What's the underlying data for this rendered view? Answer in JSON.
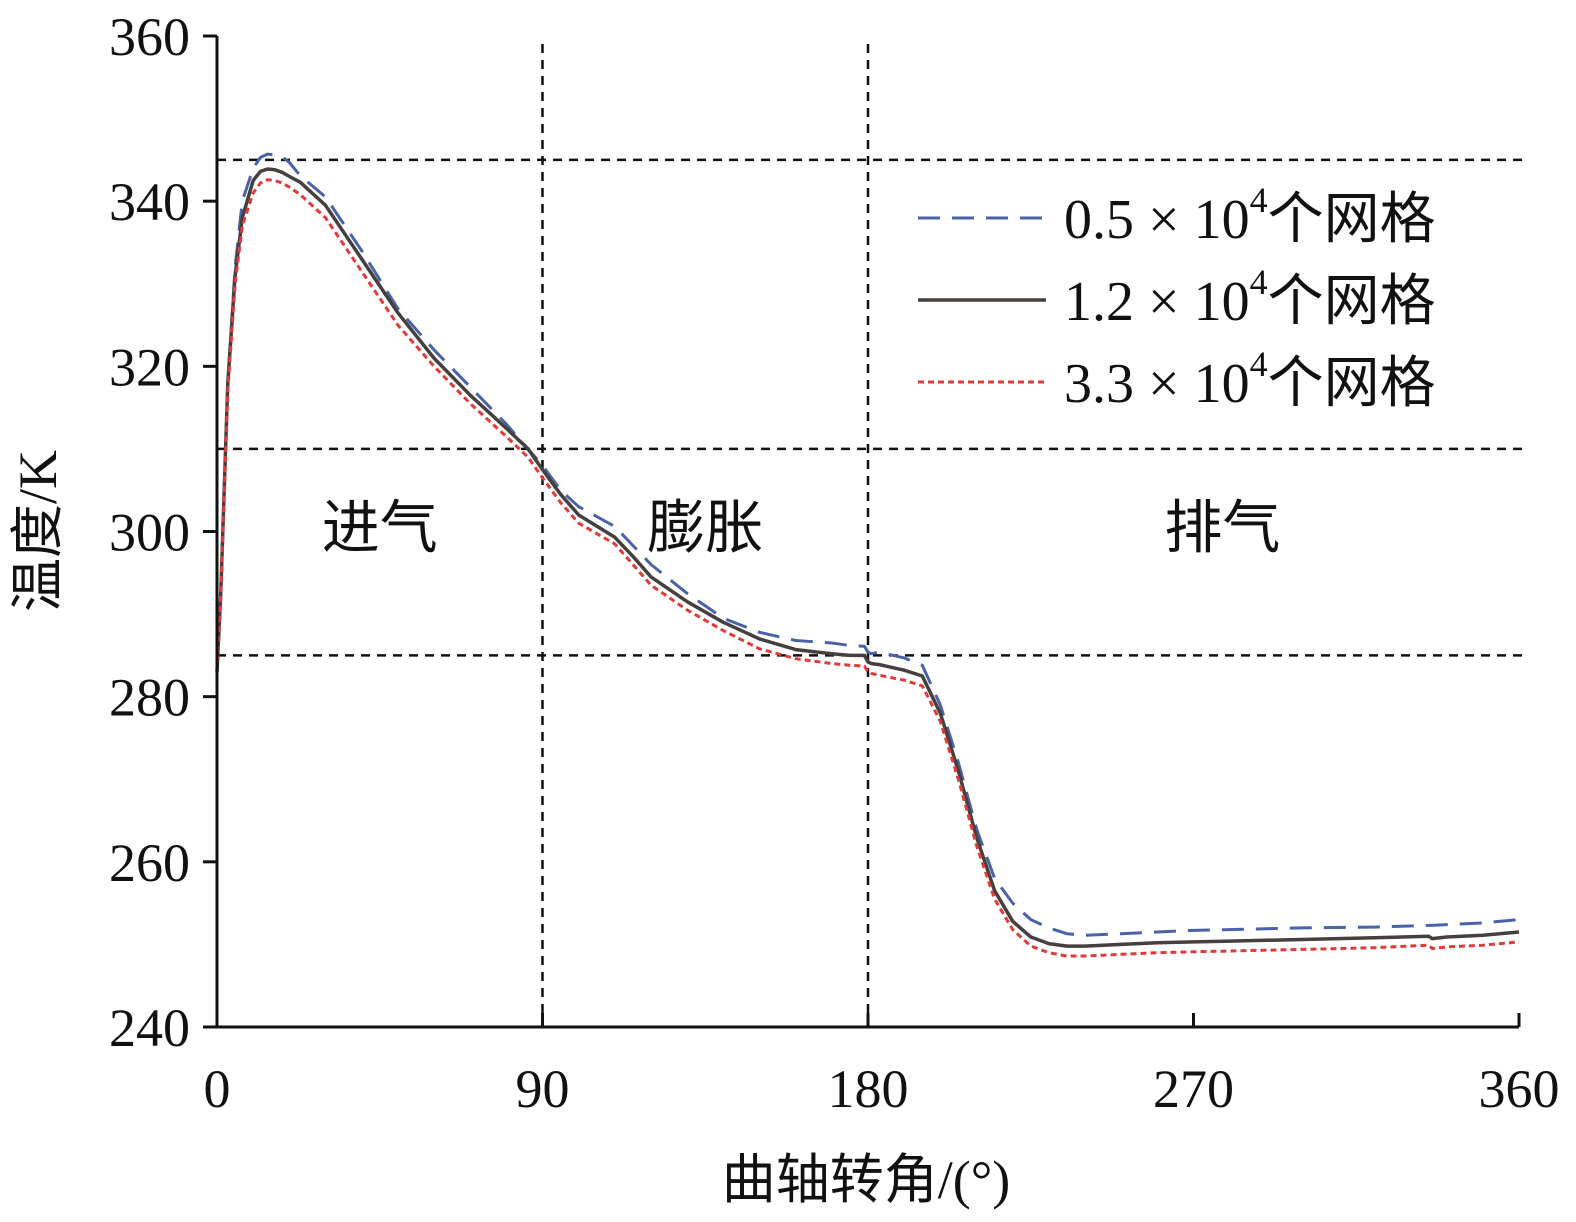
{
  "chart_data": {
    "type": "line",
    "title": "",
    "xlabel": "曲轴转角/(°)",
    "ylabel": "温度/K",
    "xlim": [
      0,
      360
    ],
    "ylim": [
      240,
      360
    ],
    "xticks": [
      "0",
      "90",
      "180",
      "270",
      "360"
    ],
    "yticks": [
      "240",
      "260",
      "280",
      "300",
      "320",
      "340",
      "360"
    ],
    "grid": false,
    "legend_position": "top-right",
    "reference_lines": {
      "vertical_x": [
        90,
        180
      ],
      "horizontal_y": [
        345,
        310,
        285
      ]
    },
    "regions": [
      {
        "label": "进气",
        "x": 45,
        "y": 300
      },
      {
        "label": "膨胀",
        "x": 135,
        "y": 300
      },
      {
        "label": "排气",
        "x": 278,
        "y": 300
      }
    ],
    "series": [
      {
        "name": "0.5×10⁴个网格",
        "legend_text": "0.5 × 10",
        "legend_sup": "4",
        "legend_suffix": "个网格",
        "color": "#4a63a8",
        "style": "dashed",
        "x": [
          0,
          1,
          3,
          5,
          7,
          10,
          12,
          14,
          16,
          18,
          20,
          23,
          30,
          40,
          50,
          60,
          70,
          80,
          86,
          90,
          95,
          100,
          110,
          115,
          120,
          130,
          140,
          150,
          160,
          170,
          175,
          179,
          180,
          181,
          183,
          190,
          195,
          200,
          205,
          210,
          215,
          220,
          225,
          230,
          235,
          240,
          245,
          250,
          260,
          270,
          280,
          300,
          320,
          335,
          336,
          340,
          350,
          360
        ],
        "y": [
          283,
          292,
          318,
          332,
          340,
          344,
          345.3,
          345.7,
          345.6,
          345.4,
          344.7,
          343.1,
          340.5,
          334,
          327,
          322,
          317.5,
          313,
          310,
          308,
          305,
          303,
          300.6,
          298.3,
          296,
          292.5,
          289.5,
          287.8,
          286.8,
          286.5,
          286.2,
          286.1,
          285.4,
          285.2,
          285.4,
          284.7,
          283.8,
          279,
          272,
          264,
          258,
          255,
          253,
          252,
          251.3,
          251.1,
          251.2,
          251.3,
          251.5,
          251.7,
          251.8,
          252,
          252.1,
          252.3,
          252.3,
          252.4,
          252.6,
          253
        ]
      },
      {
        "name": "1.2×10⁴个网格",
        "legend_text": "1.2 × 10",
        "legend_sup": "4",
        "legend_suffix": "个网格",
        "color": "#45403d",
        "style": "solid",
        "x": [
          0,
          1,
          3,
          5,
          7,
          10,
          12,
          14,
          16,
          18,
          20,
          23,
          30,
          40,
          50,
          60,
          70,
          80,
          86,
          90,
          95,
          100,
          110,
          115,
          120,
          130,
          140,
          150,
          160,
          170,
          175,
          179,
          180,
          181,
          183,
          190,
          195,
          200,
          205,
          210,
          215,
          220,
          225,
          230,
          235,
          240,
          245,
          250,
          260,
          270,
          280,
          300,
          320,
          335,
          336,
          340,
          350,
          360
        ],
        "y": [
          283,
          292,
          318,
          331,
          338,
          342.5,
          343.6,
          343.9,
          343.8,
          343.5,
          343,
          342.3,
          339.5,
          333,
          326.5,
          321,
          316.5,
          312.5,
          310,
          307.5,
          304.5,
          302,
          299.3,
          297,
          294.5,
          291.5,
          289,
          287,
          285.7,
          285.2,
          285,
          285,
          284.2,
          284,
          283.9,
          283.2,
          282.5,
          278,
          271,
          263,
          256.5,
          252.8,
          250.9,
          250.1,
          249.8,
          249.8,
          249.9,
          250,
          250.2,
          250.3,
          250.4,
          250.6,
          250.8,
          251,
          250.7,
          250.9,
          251.1,
          251.5
        ]
      },
      {
        "name": "3.3×10⁴个网格",
        "legend_text": "3.3 × 10",
        "legend_sup": "4",
        "legend_suffix": "个网格",
        "color": "#e03a3a",
        "style": "dotted",
        "x": [
          0,
          1,
          3,
          5,
          7,
          10,
          12,
          14,
          16,
          18,
          20,
          23,
          30,
          40,
          50,
          60,
          70,
          80,
          86,
          90,
          95,
          100,
          110,
          115,
          120,
          130,
          140,
          150,
          160,
          170,
          175,
          179,
          180,
          181,
          183,
          190,
          195,
          200,
          205,
          210,
          215,
          220,
          225,
          230,
          235,
          240,
          245,
          250,
          260,
          270,
          280,
          300,
          320,
          335,
          336,
          340,
          350,
          360
        ],
        "y": [
          283,
          292,
          317,
          330,
          337,
          341,
          342.2,
          342.6,
          342.5,
          342.2,
          341.7,
          340.8,
          338,
          331.5,
          325,
          320,
          315.5,
          311.5,
          309,
          306.5,
          303.5,
          301,
          298.5,
          296,
          293.5,
          290.5,
          288,
          285.8,
          284.6,
          284,
          283.8,
          283.7,
          283,
          282.8,
          282.6,
          282,
          281.3,
          277,
          270,
          262,
          255.5,
          251.8,
          249.8,
          249,
          248.6,
          248.6,
          248.7,
          248.8,
          249,
          249.1,
          249.2,
          249.4,
          249.6,
          249.9,
          249.5,
          249.7,
          249.9,
          250.3
        ]
      }
    ]
  }
}
